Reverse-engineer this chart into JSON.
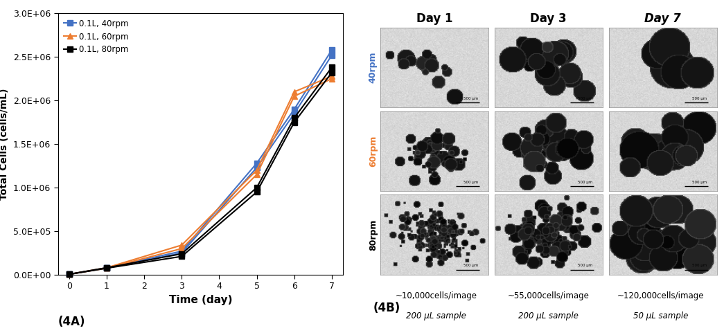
{
  "title_left": "(4A)",
  "title_right": "(4B)",
  "ylabel": "Total Cells (cells/mL)",
  "xlabel": "Time (day)",
  "xlim": [
    -0.3,
    7.3
  ],
  "ylim": [
    0,
    3000000
  ],
  "yticks": [
    0,
    500000,
    1000000,
    1500000,
    2000000,
    2500000,
    3000000
  ],
  "ytick_labels": [
    "0.0E+00",
    "5.0E+05",
    "1.0E+06",
    "1.5E+06",
    "2.0E+06",
    "2.5E+06",
    "3.0E+06"
  ],
  "xticks": [
    0,
    1,
    2,
    3,
    4,
    5,
    6,
    7
  ],
  "series": [
    {
      "label": "0.1L, 40rpm",
      "color": "#4472C4",
      "marker": "s",
      "x": [
        0,
        1,
        3,
        5,
        6,
        7
      ],
      "y1": [
        5000,
        80000,
        270000,
        1280000,
        1900000,
        2580000
      ],
      "y2": [
        5000,
        75000,
        250000,
        1230000,
        1850000,
        2520000
      ]
    },
    {
      "label": "0.1L, 60rpm",
      "color": "#ED7D31",
      "marker": "^",
      "x": [
        0,
        1,
        3,
        5,
        6,
        7
      ],
      "y1": [
        5000,
        80000,
        340000,
        1200000,
        2100000,
        2280000
      ],
      "y2": [
        5000,
        75000,
        300000,
        1150000,
        2050000,
        2250000
      ]
    },
    {
      "label": "0.1L, 80rpm",
      "color": "#000000",
      "marker": "s",
      "x": [
        0,
        1,
        3,
        5,
        6,
        7
      ],
      "y1": [
        5000,
        80000,
        240000,
        1000000,
        1800000,
        2380000
      ],
      "y2": [
        5000,
        75000,
        210000,
        950000,
        1750000,
        2320000
      ]
    }
  ],
  "legend_labels": [
    "0.1L, 40rpm",
    "0.1L, 60rpm",
    "0.1L, 80rpm"
  ],
  "legend_colors": [
    "#4472C4",
    "#ED7D31",
    "#000000"
  ],
  "day_labels": [
    "Day 1",
    "Day 3",
    "Day 7"
  ],
  "day_label_styles": [
    "normal",
    "normal",
    "italic"
  ],
  "rpm_labels": [
    "40rpm",
    "60rpm",
    "80rpm"
  ],
  "rpm_colors": [
    "#4472C4",
    "#ED7D31",
    "#000000"
  ],
  "cell_counts_line1": [
    "~10,000cells/image",
    "~55,000cells/image",
    "~120,000cells/image"
  ],
  "cell_counts_line2": [
    "200 μL sample",
    "200 μL sample",
    "50 μL sample"
  ],
  "background_color": "#ffffff",
  "cell_configs": [
    [
      [
        15,
        [
          5,
          12
        ],
        0.45
      ],
      [
        20,
        [
          8,
          18
        ],
        0.55
      ],
      [
        5,
        [
          20,
          32
        ],
        0.7
      ]
    ],
    [
      [
        50,
        [
          3,
          9
        ],
        0.5
      ],
      [
        40,
        [
          6,
          16
        ],
        0.6
      ],
      [
        16,
        [
          14,
          26
        ],
        0.65
      ]
    ],
    [
      [
        200,
        [
          2,
          5
        ],
        0.5
      ],
      [
        120,
        [
          3,
          9
        ],
        0.55
      ],
      [
        28,
        [
          10,
          22
        ],
        0.65
      ]
    ]
  ]
}
